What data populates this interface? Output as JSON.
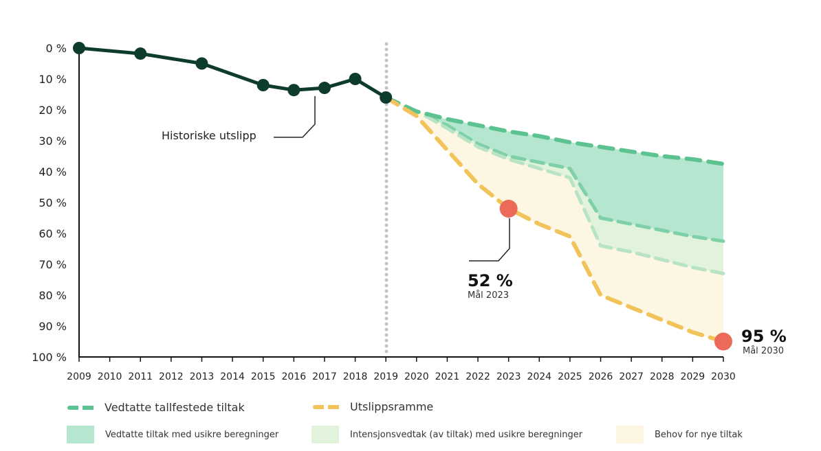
{
  "chart_data": {
    "type": "line",
    "x": [
      2009,
      2010,
      2011,
      2012,
      2013,
      2014,
      2015,
      2016,
      2017,
      2018,
      2019,
      2020,
      2021,
      2022,
      2023,
      2024,
      2025,
      2026,
      2027,
      2028,
      2029,
      2030
    ],
    "x_tick_labels": [
      "2009",
      "2010",
      "2011",
      "2012",
      "2013",
      "2014",
      "2015",
      "2016",
      "2017",
      "2018",
      "2019",
      "2020",
      "2021",
      "2022",
      "2023",
      "2024",
      "2025",
      "2026",
      "2027",
      "2028",
      "2029",
      "2030"
    ],
    "y_tick_labels": [
      "0 %",
      "10 %",
      "20 %",
      "30 %",
      "40 %",
      "50 %",
      "60 %",
      "70 %",
      "80 %",
      "90 %",
      "100 %"
    ],
    "ylim": [
      0,
      100
    ],
    "y_inverted": true,
    "grid": false,
    "vertical_marker_year": 2019,
    "historical": {
      "label": "Historiske utslipp",
      "color": "#0d3b2e",
      "points": [
        [
          2009,
          0
        ],
        [
          2011,
          1.8
        ],
        [
          2013,
          5
        ],
        [
          2015,
          12
        ],
        [
          2016,
          13.6
        ],
        [
          2017,
          12.9
        ],
        [
          2018,
          10
        ],
        [
          2019,
          16
        ]
      ]
    },
    "series": [
      {
        "name": "Vedtatte tallfestede tiltak",
        "color": "#5cc28f",
        "style": "dashed",
        "points": [
          [
            2019,
            16
          ],
          [
            2020,
            20.5
          ],
          [
            2021,
            23
          ],
          [
            2022,
            25
          ],
          [
            2023,
            27
          ],
          [
            2024,
            28.5
          ],
          [
            2025,
            30.5
          ],
          [
            2026,
            32
          ],
          [
            2027,
            33.5
          ],
          [
            2028,
            35
          ],
          [
            2029,
            36
          ],
          [
            2030,
            37.5
          ]
        ]
      },
      {
        "name": "Utslippsramme",
        "color": "#f2c35a",
        "style": "dashed",
        "points": [
          [
            2019,
            16
          ],
          [
            2020,
            22
          ],
          [
            2021,
            33
          ],
          [
            2022,
            44
          ],
          [
            2023,
            52
          ],
          [
            2024,
            57
          ],
          [
            2025,
            61
          ],
          [
            2026,
            80
          ],
          [
            2027,
            84
          ],
          [
            2028,
            88
          ],
          [
            2029,
            92
          ],
          [
            2030,
            95
          ]
        ]
      }
    ],
    "bands": [
      {
        "name": "Vedtatte tiltak med usikre beregninger",
        "color": "#b5e6cf",
        "upper": [
          [
            2020.3,
            22
          ],
          [
            2021,
            23
          ],
          [
            2022,
            25
          ],
          [
            2023,
            27
          ],
          [
            2024,
            28.5
          ],
          [
            2025,
            30.5
          ],
          [
            2026,
            32
          ],
          [
            2027,
            33.5
          ],
          [
            2028,
            35
          ],
          [
            2029,
            36
          ],
          [
            2030,
            37.5
          ]
        ],
        "lower": [
          [
            2020.3,
            22
          ],
          [
            2021,
            25
          ],
          [
            2022,
            31
          ],
          [
            2023,
            35
          ],
          [
            2024,
            37
          ],
          [
            2025,
            39
          ],
          [
            2026,
            55
          ],
          [
            2027,
            57
          ],
          [
            2028,
            59
          ],
          [
            2029,
            61
          ],
          [
            2030,
            62.5
          ]
        ]
      },
      {
        "name": "Intensjonsvedtak (av tiltak) med usikre beregninger",
        "color": "#e2f3dc",
        "upper": [
          [
            2020.3,
            22
          ],
          [
            2021,
            25
          ],
          [
            2022,
            31
          ],
          [
            2023,
            35
          ],
          [
            2024,
            37
          ],
          [
            2025,
            39
          ],
          [
            2026,
            55
          ],
          [
            2027,
            57
          ],
          [
            2028,
            59
          ],
          [
            2029,
            61
          ],
          [
            2030,
            62.5
          ]
        ],
        "lower": [
          [
            2020.3,
            22
          ],
          [
            2021,
            26
          ],
          [
            2022,
            32
          ],
          [
            2023,
            36
          ],
          [
            2024,
            39
          ],
          [
            2025,
            42
          ],
          [
            2026,
            64
          ],
          [
            2027,
            66
          ],
          [
            2028,
            68.5
          ],
          [
            2029,
            71
          ],
          [
            2030,
            73
          ]
        ]
      },
      {
        "name": "Behov for nye tiltak",
        "color": "#fdf6e3",
        "upper": [
          [
            2019,
            16
          ],
          [
            2020,
            20.5
          ],
          [
            2021,
            23
          ],
          [
            2022,
            25
          ],
          [
            2023,
            27
          ],
          [
            2024,
            28.5
          ],
          [
            2025,
            30.5
          ],
          [
            2026,
            32
          ],
          [
            2027,
            33.5
          ],
          [
            2028,
            35
          ],
          [
            2029,
            36
          ],
          [
            2030,
            37.5
          ]
        ],
        "lower": [
          [
            2019,
            16
          ],
          [
            2020,
            22
          ],
          [
            2021,
            33
          ],
          [
            2022,
            44
          ],
          [
            2023,
            52
          ],
          [
            2024,
            57
          ],
          [
            2025,
            61
          ],
          [
            2026,
            80
          ],
          [
            2027,
            84
          ],
          [
            2028,
            88
          ],
          [
            2029,
            92
          ],
          [
            2030,
            95
          ]
        ]
      }
    ],
    "targets": [
      {
        "year": 2023,
        "value": 52,
        "value_label": "52 %",
        "label": "Mål 2023",
        "color": "#ec6a5a"
      },
      {
        "year": 2030,
        "value": 95,
        "value_label": "95 %",
        "label": "Mål 2030",
        "color": "#ec6a5a"
      }
    ],
    "legend": {
      "placement": "bottom",
      "lines": [
        {
          "label": "Vedtatte tallfestede tiltak",
          "color": "#5cc28f"
        },
        {
          "label": "Utslippsramme",
          "color": "#f2c35a"
        }
      ],
      "areas": [
        {
          "label": "Vedtatte tiltak med usikre beregninger",
          "color": "#b5e6cf"
        },
        {
          "label": "Intensjonsvedtak (av tiltak) med usikre beregninger",
          "color": "#e2f3dc"
        },
        {
          "label": "Behov for nye tiltak",
          "color": "#fdf6e3"
        }
      ]
    }
  }
}
